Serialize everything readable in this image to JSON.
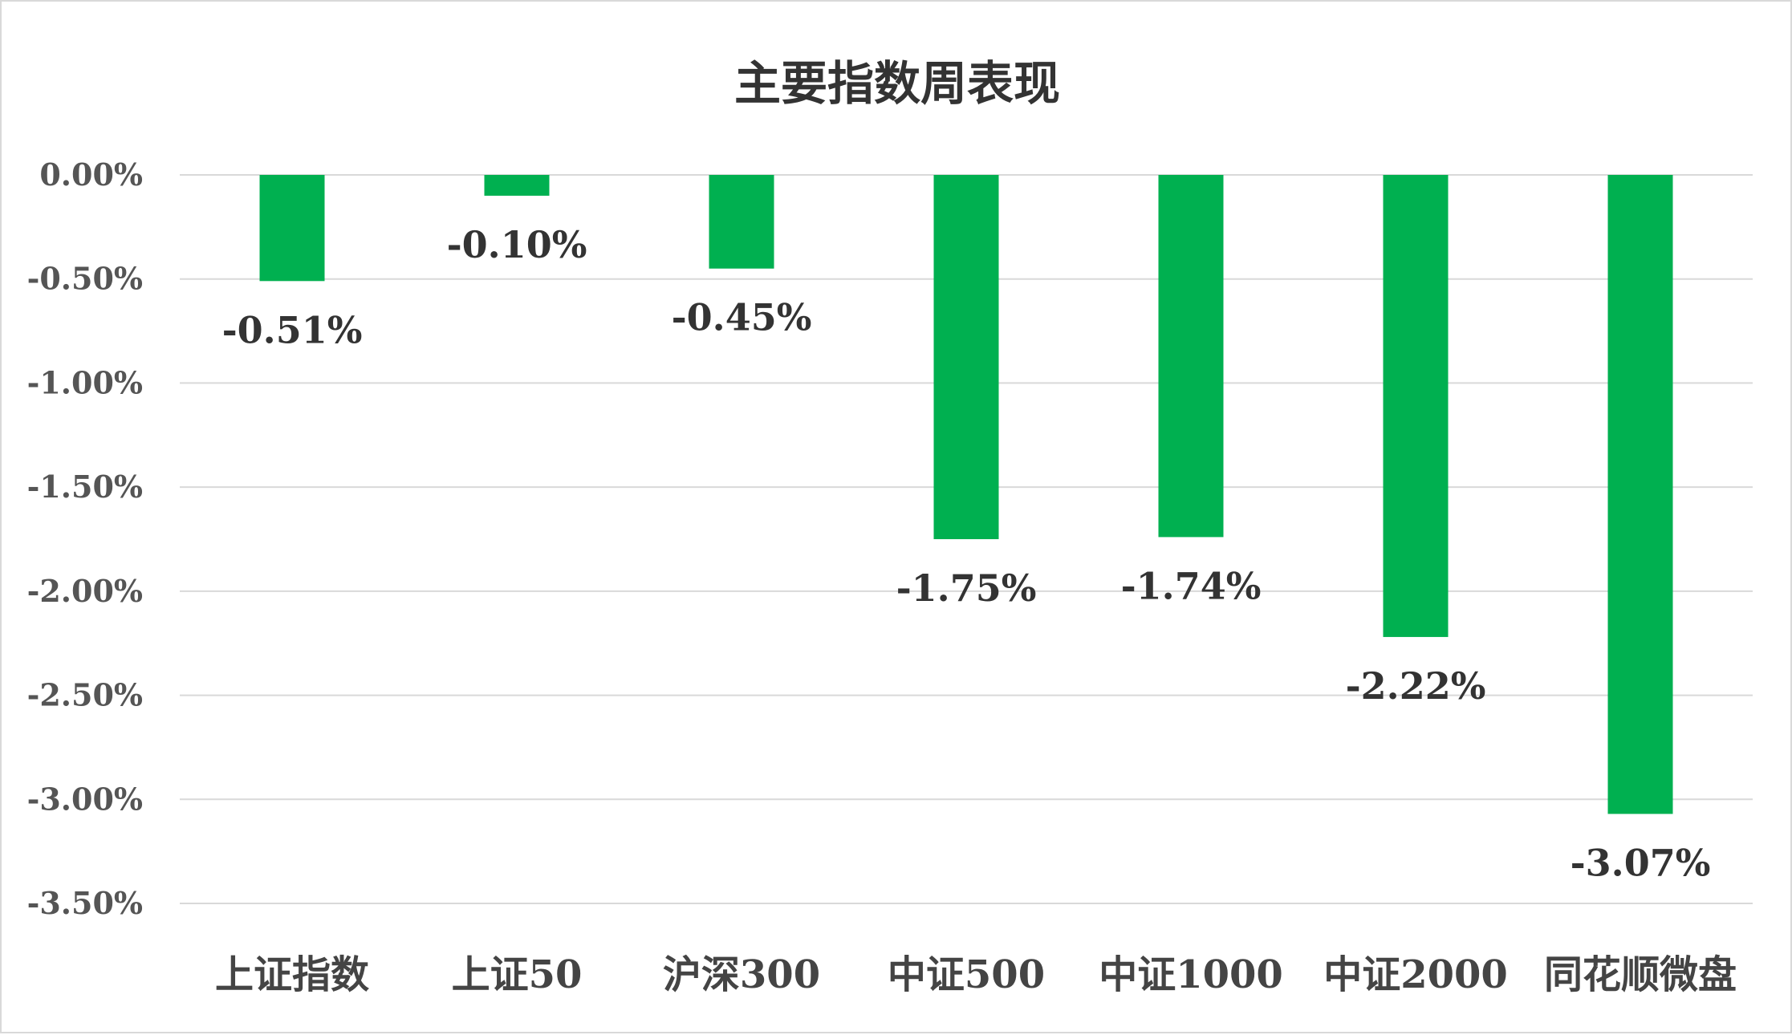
{
  "chart_data": {
    "type": "bar",
    "title": "主要指数周表现",
    "categories": [
      "上证指数",
      "上证50",
      "沪深300",
      "中证500",
      "中证1000",
      "中证2000",
      "同花顺微盘"
    ],
    "values": [
      -0.51,
      -0.1,
      -0.45,
      -1.75,
      -1.74,
      -2.22,
      -3.07
    ],
    "data_labels": [
      "-0.51%",
      "-0.10%",
      "-0.45%",
      "-1.75%",
      "-1.74%",
      "-2.22%",
      "-3.07%"
    ],
    "yticks": [
      0,
      -0.5,
      -1.0,
      -1.5,
      -2.0,
      -2.5,
      -3.0,
      -3.5
    ],
    "ytick_labels": [
      "0.00%",
      "-0.50%",
      "-1.00%",
      "-1.50%",
      "-2.00%",
      "-2.50%",
      "-3.00%",
      "-3.50%"
    ],
    "ylim": [
      -3.5,
      0
    ],
    "grid": true,
    "legend": "none",
    "bar_color": "#00b050"
  }
}
